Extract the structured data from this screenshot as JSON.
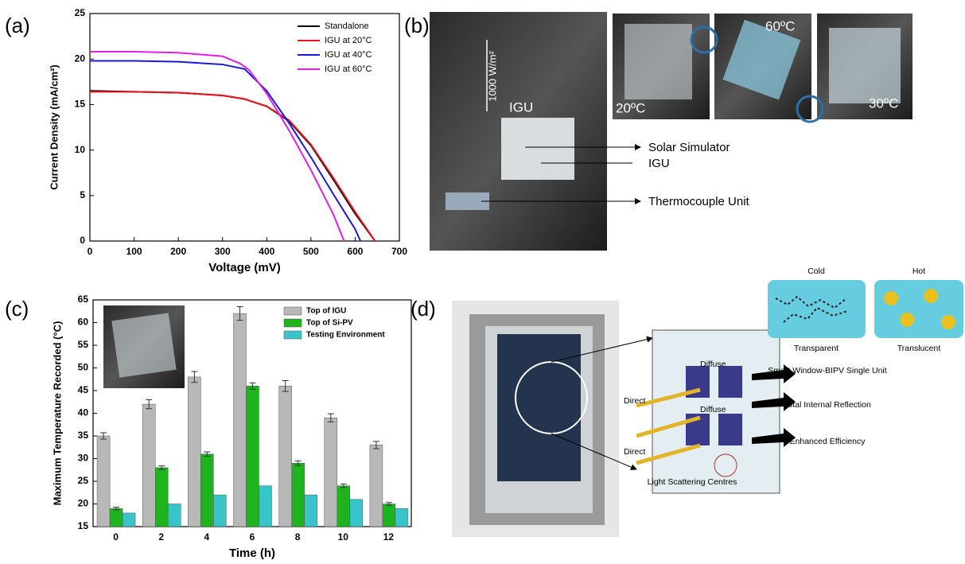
{
  "panel_labels": [
    "(a)",
    "(b)",
    "(c)",
    "(d)"
  ],
  "chart_data": [
    {
      "type": "line",
      "x_label": "Voltage (mV)",
      "y_label": "Current Density (mA/cm²)",
      "xlim": [
        0,
        700
      ],
      "xticks": [
        0,
        100,
        200,
        300,
        400,
        500,
        600,
        700
      ],
      "ylim": [
        0,
        25
      ],
      "yticks": [
        0,
        5,
        10,
        15,
        20,
        25
      ],
      "legend": "top-right",
      "series": [
        {
          "name": "Standalone",
          "color": "#000000",
          "x": [
            0,
            100,
            200,
            300,
            350,
            400,
            450,
            500,
            550,
            600,
            645
          ],
          "values": [
            16.5,
            16.4,
            16.3,
            16.0,
            15.6,
            14.8,
            13.2,
            10.5,
            6.8,
            3.0,
            0
          ]
        },
        {
          "name": "IGU at 20°C",
          "color": "#e8141e",
          "x": [
            0,
            100,
            200,
            300,
            350,
            400,
            450,
            500,
            550,
            600,
            645
          ],
          "values": [
            16.4,
            16.4,
            16.3,
            16.0,
            15.6,
            14.8,
            13.3,
            10.6,
            7.0,
            3.2,
            0
          ]
        },
        {
          "name": "IGU at 40°C",
          "color": "#1a1ad6",
          "x": [
            0,
            100,
            200,
            300,
            350,
            400,
            450,
            500,
            550,
            600,
            612
          ],
          "values": [
            19.8,
            19.8,
            19.7,
            19.4,
            18.9,
            16.5,
            13.0,
            9.2,
            5.2,
            1.3,
            0
          ]
        },
        {
          "name": "IGU at 60°C",
          "color": "#e020e0",
          "x": [
            0,
            100,
            200,
            300,
            340,
            360,
            400,
            450,
            500,
            550,
            575
          ],
          "values": [
            20.8,
            20.8,
            20.7,
            20.3,
            19.5,
            18.8,
            16.2,
            12.2,
            7.8,
            3.0,
            0
          ]
        }
      ]
    },
    {
      "type": "bar",
      "x_label": "Time (h)",
      "y_label": "Maximum Temperature Recorded (°C)",
      "categories": [
        0,
        2,
        4,
        6,
        8,
        10,
        12
      ],
      "ylim": [
        15,
        65
      ],
      "yticks": [
        15,
        20,
        25,
        30,
        35,
        40,
        45,
        50,
        55,
        60,
        65
      ],
      "legend": "top-right",
      "series": [
        {
          "name": "Top of IGU",
          "color": "#b8b8b8",
          "values": [
            35,
            42,
            48,
            62,
            46,
            39,
            33
          ],
          "errors": [
            0.7,
            1.0,
            1.2,
            1.5,
            1.2,
            0.9,
            0.8
          ]
        },
        {
          "name": "Top of Si-PV",
          "color": "#1fb31f",
          "values": [
            19,
            28,
            31,
            46,
            29,
            24,
            20
          ],
          "errors": [
            0.3,
            0.4,
            0.5,
            0.7,
            0.5,
            0.4,
            0.3
          ]
        },
        {
          "name": "Testing Environment",
          "color": "#38c4c8",
          "values": [
            18,
            20,
            22,
            24,
            22,
            21,
            19
          ]
        }
      ]
    }
  ],
  "photo_panel": {
    "irradiance": "1000 W/m²",
    "igu_tag": "IGU",
    "temps": [
      "20ºC",
      "60ºC",
      "30ºC"
    ],
    "labels": [
      "Solar Simulator",
      "IGU",
      "Thermocouple Unit"
    ]
  },
  "diagram_panel": {
    "states": [
      {
        "title": "Cold",
        "caption": "Transparent"
      },
      {
        "title": "Hot",
        "caption": "Translucent"
      }
    ],
    "rays": [
      "Direct",
      "Direct"
    ],
    "diffuse": [
      "Diffuse",
      "Diffuse"
    ],
    "outcomes": [
      "Smart Window-BIPV Single Unit",
      "Total Internal Reflection",
      "Enhanced Efficiency"
    ],
    "centres": "Light Scattering Centres"
  }
}
